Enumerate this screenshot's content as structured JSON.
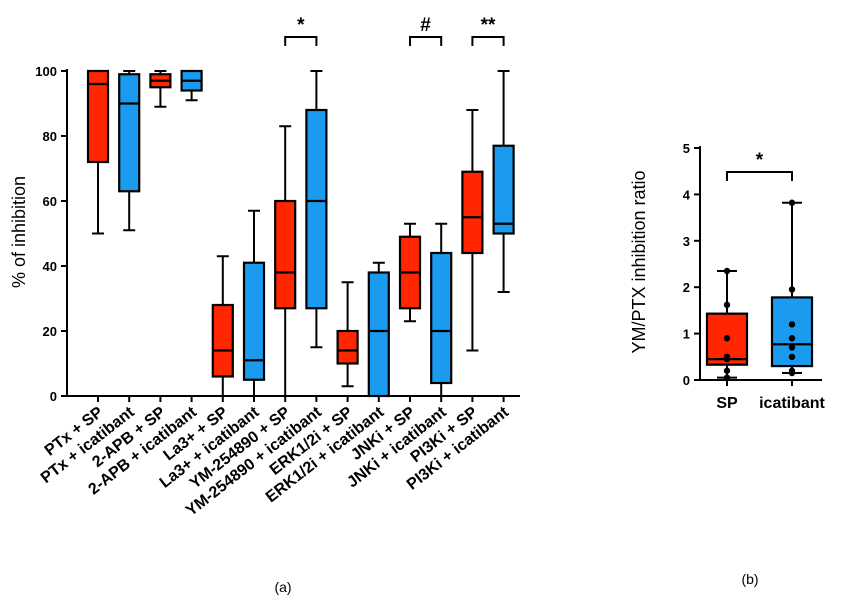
{
  "colors": {
    "sp": "#ff2600",
    "icatibant": "#1a9bf0",
    "axis": "#000000"
  },
  "captions": {
    "a": "(a)",
    "b": "(b)"
  },
  "chart_data": [
    {
      "type": "boxplot",
      "title": "",
      "ylabel": "% of inhibition",
      "ylim": [
        0,
        100
      ],
      "yticks": [
        "0",
        "20",
        "40",
        "60",
        "80",
        "100"
      ],
      "categories": [
        "PTx + SP",
        "PTx + icatibant",
        "2-APB + SP",
        "2-APB + icatibant",
        "La3+ + SP",
        "La3+ + icatibant",
        "YM-254890 + SP",
        "YM-254890 + icatibant",
        "ERK1/2i + SP",
        "ERK1/2i + icatibant",
        "JNKi + SP",
        "JNKi + icatibant",
        "PI3Ki + SP",
        "PI3Ki + icatibant"
      ],
      "boxes": [
        {
          "group": "sp",
          "min": 50,
          "q1": 72,
          "median": 96,
          "q3": 100,
          "max": 100
        },
        {
          "group": "icatibant",
          "min": 51,
          "q1": 63,
          "median": 90,
          "q3": 99,
          "max": 100
        },
        {
          "group": "sp",
          "min": 89,
          "q1": 95,
          "median": 97,
          "q3": 99,
          "max": 100
        },
        {
          "group": "icatibant",
          "min": 91,
          "q1": 94,
          "median": 97,
          "q3": 100,
          "max": 100
        },
        {
          "group": "sp",
          "min": 0,
          "q1": 6,
          "median": 14,
          "q3": 28,
          "max": 43
        },
        {
          "group": "icatibant",
          "min": 0,
          "q1": 5,
          "median": 11,
          "q3": 41,
          "max": 57
        },
        {
          "group": "sp",
          "min": 0,
          "q1": 27,
          "median": 38,
          "q3": 60,
          "max": 83
        },
        {
          "group": "icatibant",
          "min": 15,
          "q1": 27,
          "median": 60,
          "q3": 88,
          "max": 100
        },
        {
          "group": "sp",
          "min": 3,
          "q1": 10,
          "median": 14,
          "q3": 20,
          "max": 35
        },
        {
          "group": "icatibant",
          "min": 0,
          "q1": 0,
          "median": 20,
          "q3": 38,
          "max": 41
        },
        {
          "group": "sp",
          "min": 23,
          "q1": 27,
          "median": 38,
          "q3": 49,
          "max": 53
        },
        {
          "group": "icatibant",
          "min": 0,
          "q1": 4,
          "median": 20,
          "q3": 44,
          "max": 53
        },
        {
          "group": "sp",
          "min": 14,
          "q1": 44,
          "median": 55,
          "q3": 69,
          "max": 88
        },
        {
          "group": "icatibant",
          "min": 32,
          "q1": 50,
          "median": 53,
          "q3": 77,
          "max": 100
        }
      ],
      "annotations": [
        {
          "label": "*",
          "from": 6,
          "to": 7
        },
        {
          "label": "#",
          "from": 10,
          "to": 11
        },
        {
          "label": "**",
          "from": 12,
          "to": 13
        }
      ],
      "caption": "(a)"
    },
    {
      "type": "boxplot",
      "title": "",
      "ylabel": "YM/PTX inhibition ratio",
      "ylim": [
        0,
        5
      ],
      "yticks": [
        "0",
        "1",
        "2",
        "3",
        "4",
        "5"
      ],
      "categories": [
        "SP",
        "icatibant"
      ],
      "boxes": [
        {
          "group": "sp",
          "min": 0.05,
          "q1": 0.33,
          "median": 0.45,
          "q3": 1.43,
          "max": 2.35,
          "points": [
            0.05,
            0.2,
            0.45,
            0.5,
            0.9,
            1.62,
            2.35
          ]
        },
        {
          "group": "icatibant",
          "min": 0.15,
          "q1": 0.3,
          "median": 0.77,
          "q3": 1.78,
          "max": 3.82,
          "points": [
            0.15,
            0.2,
            0.5,
            0.7,
            0.9,
            1.2,
            1.95,
            3.82
          ]
        }
      ],
      "annotations": [
        {
          "label": "*",
          "from": 0,
          "to": 1
        }
      ],
      "caption": "(b)"
    }
  ]
}
